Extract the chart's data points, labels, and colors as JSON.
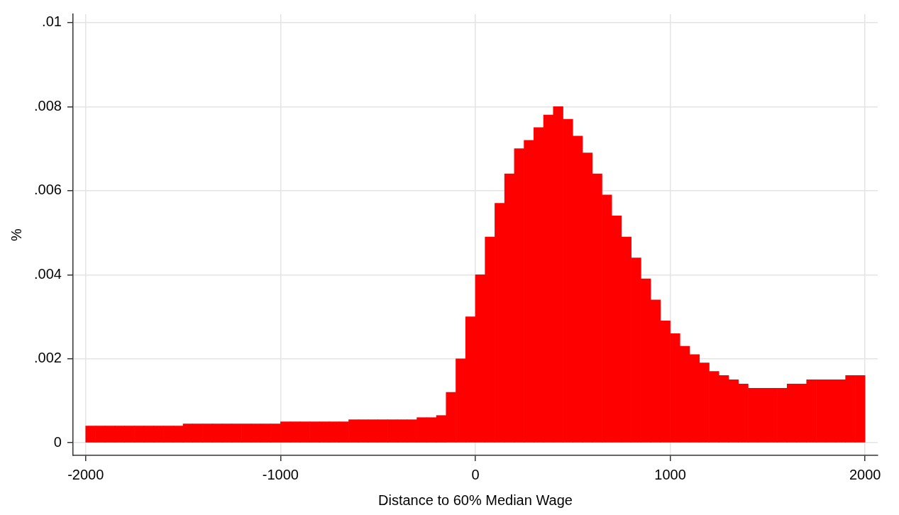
{
  "chart_data": {
    "type": "histogram",
    "xlabel": "Distance to 60% Median Wage",
    "ylabel": "%",
    "color": "#ff0000",
    "bins": [
      -2000,
      -1950,
      -1900,
      -1850,
      -1800,
      -1750,
      -1700,
      -1650,
      -1600,
      -1550,
      -1500,
      -1450,
      -1400,
      -1350,
      -1300,
      -1250,
      -1200,
      -1150,
      -1100,
      -1050,
      -1000,
      -950,
      -900,
      -850,
      -800,
      -750,
      -700,
      -650,
      -600,
      -550,
      -500,
      -450,
      -400,
      -350,
      -300,
      -250,
      -200,
      -150,
      -100,
      -50,
      0,
      50,
      100,
      150,
      200,
      250,
      300,
      350,
      400,
      450,
      500,
      550,
      600,
      650,
      700,
      750,
      800,
      850,
      900,
      950,
      1000,
      1050,
      1100,
      1150,
      1200,
      1250,
      1300,
      1350,
      1400,
      1450,
      1500,
      1550,
      1600,
      1650,
      1700,
      1750,
      1800,
      1850,
      1900,
      1950,
      2000
    ],
    "values": [
      0.0004,
      0.0004,
      0.0004,
      0.0004,
      0.0004,
      0.0004,
      0.0004,
      0.0004,
      0.0004,
      0.0004,
      0.00045,
      0.00045,
      0.00045,
      0.00045,
      0.00045,
      0.00045,
      0.00045,
      0.00045,
      0.00045,
      0.00045,
      0.0005,
      0.0005,
      0.0005,
      0.0005,
      0.0005,
      0.0005,
      0.0005,
      0.00055,
      0.00055,
      0.00055,
      0.00055,
      0.00055,
      0.00055,
      0.00055,
      0.0006,
      0.0006,
      0.00065,
      0.0012,
      0.002,
      0.003,
      0.004,
      0.0049,
      0.0057,
      0.0064,
      0.007,
      0.0072,
      0.0075,
      0.0078,
      0.008,
      0.0077,
      0.0073,
      0.0069,
      0.0064,
      0.0059,
      0.0054,
      0.0049,
      0.0044,
      0.0039,
      0.0034,
      0.0029,
      0.0026,
      0.0023,
      0.0021,
      0.0019,
      0.0017,
      0.0016,
      0.0015,
      0.0014,
      0.0013,
      0.0013,
      0.0013,
      0.0013,
      0.0014,
      0.0014,
      0.0015,
      0.0015,
      0.0015,
      0.0015,
      0.0016,
      0.0016
    ],
    "xlim": [
      -2065,
      2065
    ],
    "ylim": [
      -0.0003,
      0.0102
    ],
    "xticks": [
      -2000,
      -1000,
      0,
      1000,
      2000
    ],
    "yticks": [
      {
        "value": 0,
        "label": "0"
      },
      {
        "value": 0.002,
        "label": ".002"
      },
      {
        "value": 0.004,
        "label": ".004"
      },
      {
        "value": 0.006,
        "label": ".006"
      },
      {
        "value": 0.008,
        "label": ".008"
      },
      {
        "value": 0.01,
        "label": ".01"
      }
    ],
    "grid": true
  }
}
